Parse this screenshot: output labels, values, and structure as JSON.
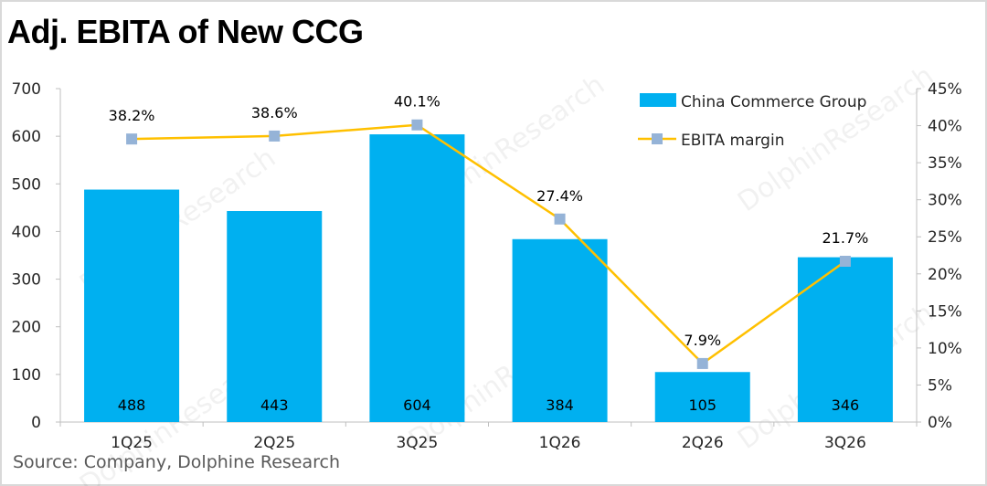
{
  "chart_data": {
    "type": "bar+line",
    "title": "Adj. EBITA of New CCG",
    "categories": [
      "1Q25",
      "2Q25",
      "3Q25",
      "1Q26",
      "2Q26",
      "3Q26"
    ],
    "series": [
      {
        "name": "China Commerce Group",
        "type": "bar",
        "axis": "left",
        "values": [
          488,
          443,
          604,
          384,
          105,
          346
        ],
        "labels": [
          "488",
          "443",
          "604",
          "384",
          "105",
          "346"
        ],
        "color": "#00B0F0"
      },
      {
        "name": "EBITA margin",
        "type": "line",
        "axis": "right",
        "values": [
          38.2,
          38.6,
          40.1,
          27.4,
          7.9,
          21.7
        ],
        "labels": [
          "38.2%",
          "38.6%",
          "40.1%",
          "27.4%",
          "7.9%",
          "21.7%"
        ],
        "color": "#FFC000",
        "marker_color": "#95B3D7"
      }
    ],
    "y_left": {
      "range": [
        0,
        700
      ],
      "ticks": [
        "0",
        "100",
        "200",
        "300",
        "400",
        "500",
        "600",
        "700"
      ]
    },
    "y_right": {
      "range": [
        0,
        45
      ],
      "ticks": [
        "0%",
        "5%",
        "10%",
        "15%",
        "20%",
        "25%",
        "30%",
        "35%",
        "40%",
        "45%"
      ]
    },
    "legend_position": "top-right",
    "grid": false
  },
  "source": "Source:   Company, Dolphine Research",
  "watermark": "DolphinResearch"
}
